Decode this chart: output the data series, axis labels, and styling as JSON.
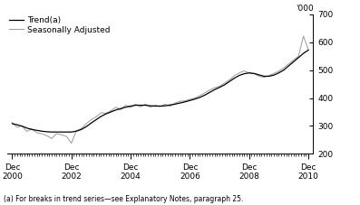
{
  "ylabel_right": "'000",
  "footnote": "(a) For breaks in trend series—see Explanatory Notes, paragraph 25.",
  "ylim": [
    200,
    700
  ],
  "yticks": [
    200,
    300,
    400,
    500,
    600,
    700
  ],
  "xtick_major": [
    2000.917,
    2002.917,
    2004.917,
    2006.917,
    2008.917,
    2010.917
  ],
  "xtick_labels": [
    "Dec\n2000",
    "Dec\n2002",
    "Dec\n2004",
    "Dec\n2006",
    "Dec\n2008",
    "Dec\n2010"
  ],
  "trend_color": "#000000",
  "sa_color": "#999999",
  "legend_labels": [
    "Trend(a)",
    "Seasonally Adjusted"
  ],
  "xlim": [
    2000.75,
    2011.08
  ],
  "trend_data_x": [
    2000.917,
    2001.083,
    2001.25,
    2001.417,
    2001.583,
    2001.75,
    2001.917,
    2002.083,
    2002.25,
    2002.417,
    2002.583,
    2002.75,
    2002.917,
    2003.083,
    2003.25,
    2003.417,
    2003.583,
    2003.75,
    2003.917,
    2004.083,
    2004.25,
    2004.417,
    2004.583,
    2004.75,
    2004.917,
    2005.083,
    2005.25,
    2005.417,
    2005.583,
    2005.75,
    2005.917,
    2006.083,
    2006.25,
    2006.417,
    2006.583,
    2006.75,
    2006.917,
    2007.083,
    2007.25,
    2007.417,
    2007.583,
    2007.75,
    2007.917,
    2008.083,
    2008.25,
    2008.417,
    2008.583,
    2008.75,
    2008.917,
    2009.083,
    2009.25,
    2009.417,
    2009.583,
    2009.75,
    2009.917,
    2010.083,
    2010.25,
    2010.417,
    2010.583,
    2010.75,
    2010.917
  ],
  "trend_data_y": [
    308,
    304,
    299,
    292,
    287,
    284,
    281,
    279,
    278,
    278,
    278,
    278,
    278,
    281,
    287,
    297,
    310,
    322,
    334,
    343,
    350,
    357,
    362,
    367,
    371,
    374,
    374,
    374,
    372,
    371,
    371,
    372,
    375,
    378,
    382,
    386,
    391,
    396,
    402,
    410,
    420,
    430,
    438,
    447,
    459,
    471,
    481,
    487,
    490,
    488,
    483,
    478,
    478,
    482,
    490,
    500,
    515,
    530,
    545,
    560,
    572
  ],
  "sa_data_x": [
    2000.917,
    2001.083,
    2001.25,
    2001.417,
    2001.583,
    2001.75,
    2001.917,
    2002.083,
    2002.25,
    2002.417,
    2002.583,
    2002.75,
    2002.917,
    2003.083,
    2003.25,
    2003.417,
    2003.583,
    2003.75,
    2003.917,
    2004.083,
    2004.25,
    2004.417,
    2004.583,
    2004.75,
    2004.917,
    2005.083,
    2005.25,
    2005.417,
    2005.583,
    2005.75,
    2005.917,
    2006.083,
    2006.25,
    2006.417,
    2006.583,
    2006.75,
    2006.917,
    2007.083,
    2007.25,
    2007.417,
    2007.583,
    2007.75,
    2007.917,
    2008.083,
    2008.25,
    2008.417,
    2008.583,
    2008.75,
    2008.917,
    2009.083,
    2009.25,
    2009.417,
    2009.583,
    2009.75,
    2009.917,
    2010.083,
    2010.25,
    2010.417,
    2010.583,
    2010.75,
    2010.917
  ],
  "sa_data_y": [
    312,
    295,
    300,
    280,
    290,
    275,
    272,
    265,
    255,
    272,
    268,
    262,
    238,
    282,
    290,
    308,
    322,
    332,
    347,
    345,
    354,
    367,
    358,
    374,
    366,
    378,
    368,
    378,
    367,
    374,
    369,
    378,
    370,
    382,
    388,
    390,
    395,
    400,
    408,
    418,
    428,
    437,
    442,
    453,
    465,
    480,
    490,
    497,
    490,
    487,
    478,
    474,
    480,
    488,
    496,
    508,
    522,
    536,
    550,
    622,
    574
  ]
}
